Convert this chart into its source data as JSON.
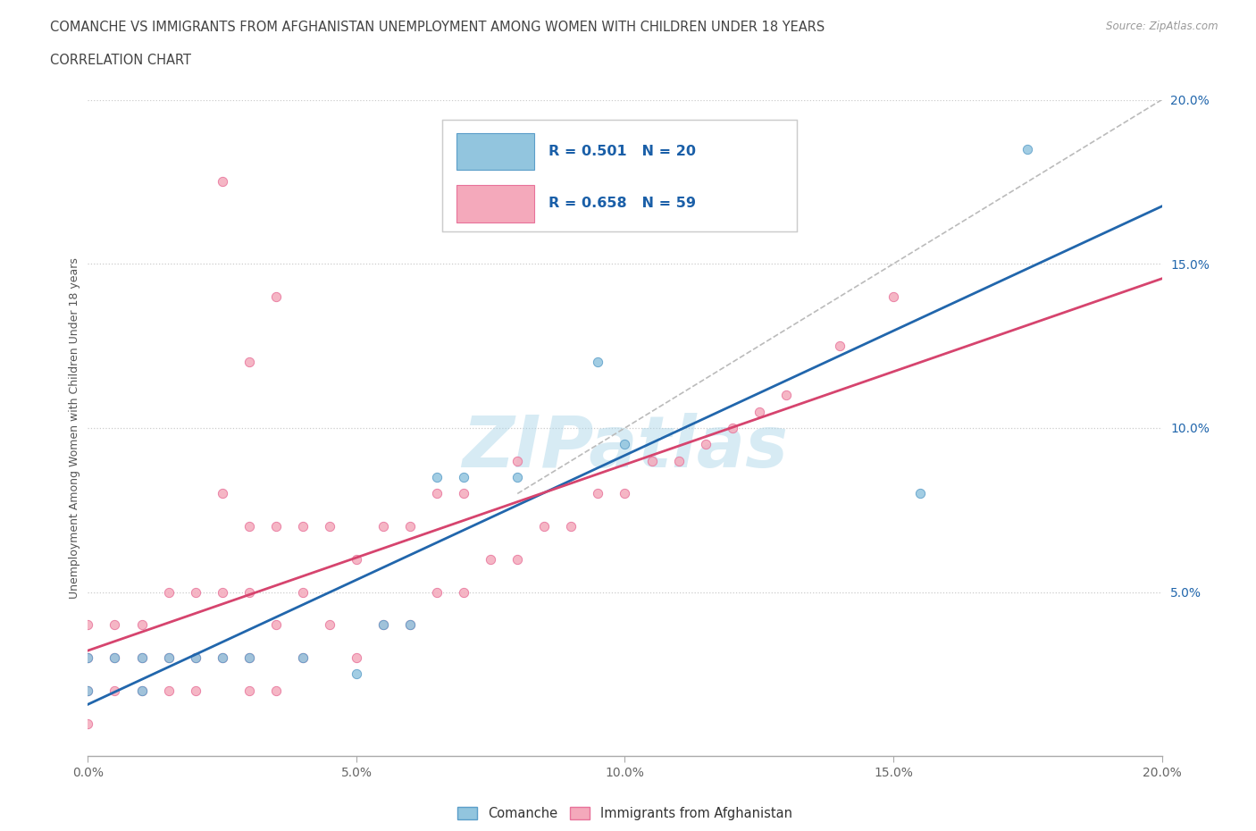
{
  "title_line1": "COMANCHE VS IMMIGRANTS FROM AFGHANISTAN UNEMPLOYMENT AMONG WOMEN WITH CHILDREN UNDER 18 YEARS",
  "title_line2": "CORRELATION CHART",
  "source": "Source: ZipAtlas.com",
  "ylabel": "Unemployment Among Women with Children Under 18 years",
  "xlim": [
    0,
    0.2
  ],
  "ylim": [
    0,
    0.2
  ],
  "xtick_vals": [
    0.0,
    0.05,
    0.1,
    0.15,
    0.2
  ],
  "ytick_vals": [
    0.05,
    0.1,
    0.15,
    0.2
  ],
  "comanche_color": "#92c5de",
  "comanche_edge": "#5b9ec9",
  "afghanistan_color": "#f4a9bb",
  "afghanistan_edge": "#e8729a",
  "line_blue": "#2166ac",
  "line_pink": "#d6446e",
  "line_gray": "#bbbbbb",
  "comanche_R": 0.501,
  "comanche_N": 20,
  "afghanistan_R": 0.658,
  "afghanistan_N": 59,
  "watermark": "ZIPatlas",
  "comanche_scatter_x": [
    0.0,
    0.0,
    0.005,
    0.01,
    0.01,
    0.015,
    0.02,
    0.025,
    0.03,
    0.04,
    0.05,
    0.055,
    0.06,
    0.065,
    0.07,
    0.08,
    0.095,
    0.1,
    0.155,
    0.175
  ],
  "comanche_scatter_y": [
    0.02,
    0.03,
    0.03,
    0.02,
    0.03,
    0.03,
    0.03,
    0.03,
    0.03,
    0.03,
    0.025,
    0.04,
    0.04,
    0.085,
    0.085,
    0.085,
    0.12,
    0.095,
    0.08,
    0.185
  ],
  "afghanistan_scatter_x": [
    0.0,
    0.0,
    0.0,
    0.0,
    0.005,
    0.005,
    0.005,
    0.01,
    0.01,
    0.01,
    0.015,
    0.015,
    0.015,
    0.02,
    0.02,
    0.02,
    0.025,
    0.025,
    0.025,
    0.03,
    0.03,
    0.03,
    0.03,
    0.035,
    0.035,
    0.035,
    0.04,
    0.04,
    0.04,
    0.045,
    0.045,
    0.05,
    0.05,
    0.055,
    0.055,
    0.06,
    0.06,
    0.065,
    0.065,
    0.07,
    0.07,
    0.075,
    0.08,
    0.08,
    0.085,
    0.09,
    0.095,
    0.1,
    0.105,
    0.11,
    0.115,
    0.12,
    0.125,
    0.13,
    0.14,
    0.15,
    0.025,
    0.03,
    0.035
  ],
  "afghanistan_scatter_y": [
    0.01,
    0.02,
    0.03,
    0.04,
    0.02,
    0.03,
    0.04,
    0.02,
    0.03,
    0.04,
    0.02,
    0.03,
    0.05,
    0.02,
    0.03,
    0.05,
    0.03,
    0.05,
    0.08,
    0.02,
    0.03,
    0.05,
    0.07,
    0.02,
    0.04,
    0.07,
    0.03,
    0.05,
    0.07,
    0.04,
    0.07,
    0.03,
    0.06,
    0.04,
    0.07,
    0.04,
    0.07,
    0.05,
    0.08,
    0.05,
    0.08,
    0.06,
    0.06,
    0.09,
    0.07,
    0.07,
    0.08,
    0.08,
    0.09,
    0.09,
    0.095,
    0.1,
    0.105,
    0.11,
    0.125,
    0.14,
    0.175,
    0.12,
    0.14
  ]
}
